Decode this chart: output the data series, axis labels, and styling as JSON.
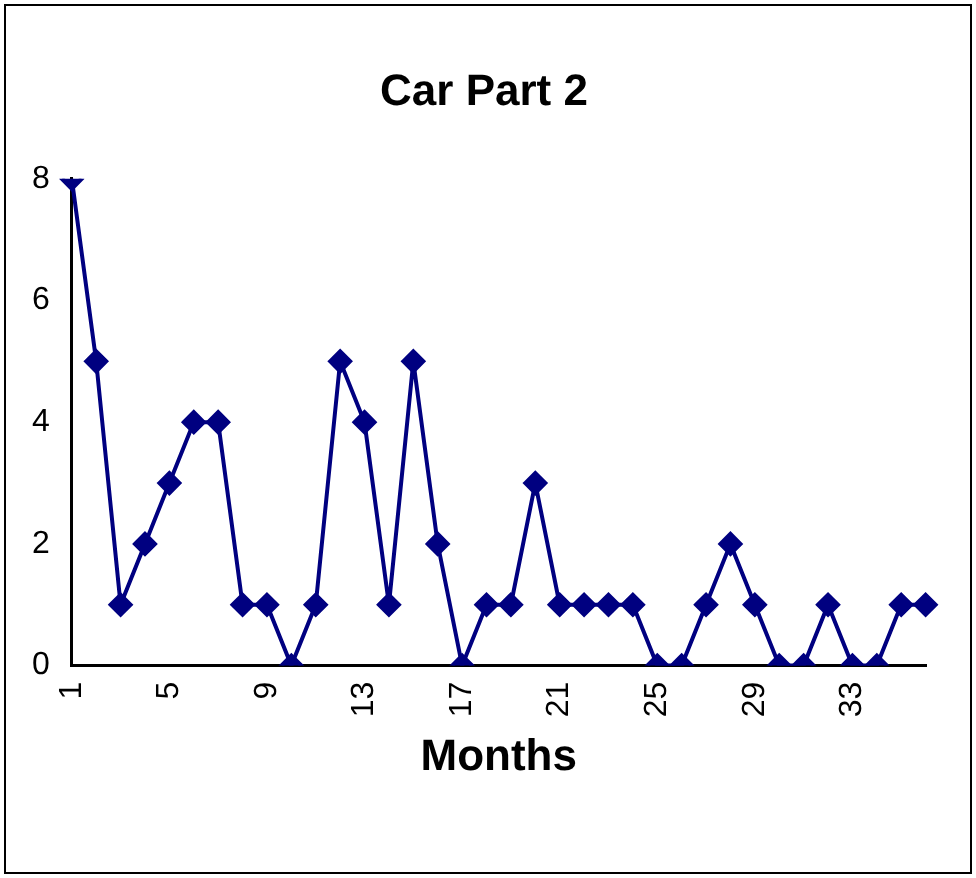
{
  "chart_data": {
    "type": "line",
    "title": "Car Part 2",
    "xlabel": "Months",
    "categories": [
      "1",
      null,
      null,
      null,
      "5",
      null,
      null,
      null,
      "9",
      null,
      null,
      null,
      "13",
      null,
      null,
      null,
      "17",
      null,
      null,
      null,
      "21",
      null,
      null,
      null,
      "25",
      null,
      null,
      null,
      "29",
      null,
      null,
      null,
      "33",
      null,
      null,
      null
    ],
    "series": [
      {
        "color": "#000080",
        "values": [
          8,
          5,
          1,
          2,
          3,
          4,
          4,
          1,
          1,
          0,
          1,
          5,
          4,
          1,
          5,
          2,
          0,
          1,
          1,
          3,
          1,
          1,
          1,
          1,
          0,
          0,
          1,
          2,
          1,
          0,
          0,
          1,
          0,
          0,
          1,
          1
        ]
      }
    ],
    "ylim": [
      0,
      8
    ],
    "yticks": [
      0,
      2,
      4,
      6,
      8
    ],
    "grid": false,
    "legend": false,
    "marker": "diamond",
    "line_style": "solid"
  }
}
